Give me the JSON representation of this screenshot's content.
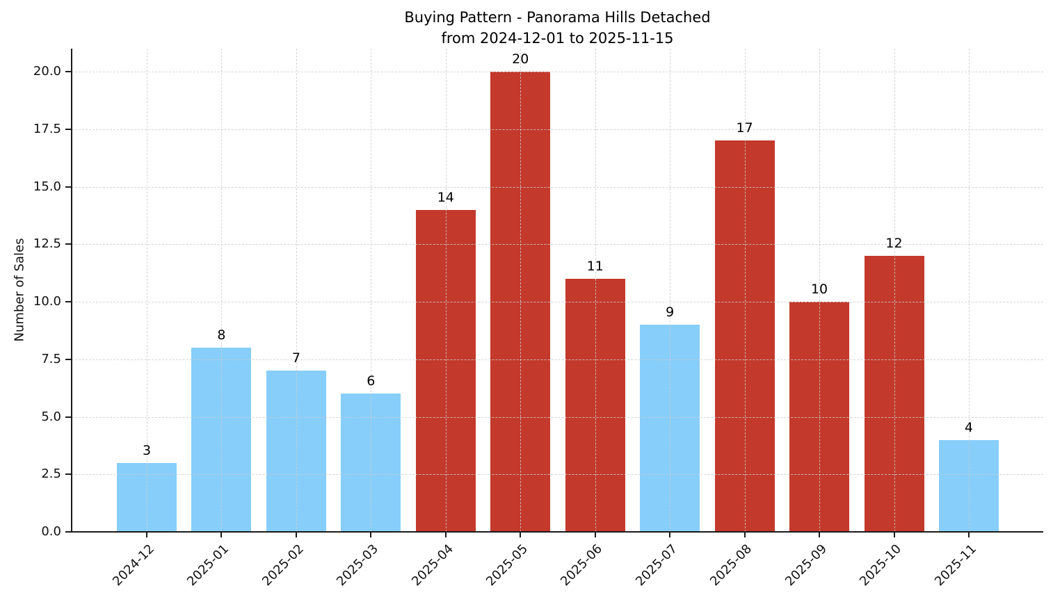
{
  "title": {
    "line1": "Buying Pattern - Panorama Hills Detached",
    "line2": "from 2024-12-01 to 2025-11-15"
  },
  "ylabel": "Number of Sales",
  "chart_data": {
    "type": "bar",
    "title": "Buying Pattern - Panorama Hills Detached",
    "subtitle": "from 2024-12-01 to 2025-11-15",
    "xlabel": "",
    "ylabel": "Number of Sales",
    "categories": [
      "2024-12",
      "2025-01",
      "2025-02",
      "2025-03",
      "2025-04",
      "2025-05",
      "2025-06",
      "2025-07",
      "2025-08",
      "2025-09",
      "2025-10",
      "2025-11"
    ],
    "values": [
      3,
      8,
      7,
      6,
      14,
      20,
      11,
      9,
      17,
      10,
      12,
      4
    ],
    "value_labels": [
      "3",
      "8",
      "7",
      "6",
      "14",
      "20",
      "11",
      "9",
      "17",
      "10",
      "12",
      "4"
    ],
    "bar_colors": [
      "#87CEFA",
      "#87CEFA",
      "#87CEFA",
      "#87CEFA",
      "#C3392B",
      "#C3392B",
      "#C3392B",
      "#87CEFA",
      "#C3392B",
      "#C3392B",
      "#C3392B",
      "#87CEFA"
    ],
    "color_low": "#87CEFA",
    "color_high": "#C3392B",
    "yticks": [
      0.0,
      2.5,
      5.0,
      7.5,
      10.0,
      12.5,
      15.0,
      17.5,
      20.0
    ],
    "ytick_labels": [
      "0.0",
      "2.5",
      "5.0",
      "7.5",
      "10.0",
      "12.5",
      "15.0",
      "17.5",
      "20.0"
    ],
    "ylim": [
      0,
      21
    ],
    "grid": "dashed, horizontal at yticks and vertical at category centers, drawn over bars",
    "legend_position": "none",
    "xtick_rotation_deg": 45
  }
}
